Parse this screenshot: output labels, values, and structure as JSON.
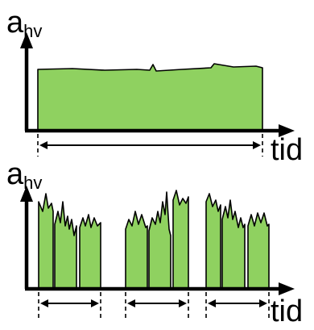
{
  "panels": [
    {
      "y_label": "a",
      "y_label_sub": "hv",
      "x_label": "tid"
    },
    {
      "y_label": "a",
      "y_label_sub": "hv",
      "x_label": "tid"
    }
  ],
  "colors": {
    "fill": "#8fd160",
    "stroke": "#000000"
  }
}
